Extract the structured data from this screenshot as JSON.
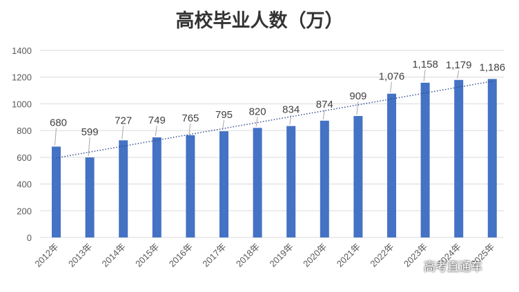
{
  "chart_data": {
    "type": "bar",
    "title": "高校毕业人数（万）",
    "categories": [
      "2012年",
      "2013年",
      "2014年",
      "2015年",
      "2016年",
      "2017年",
      "2018年",
      "2019年",
      "2020年",
      "2021年",
      "2022年",
      "2023年",
      "2024年",
      "2025年"
    ],
    "values": [
      680,
      599,
      727,
      749,
      765,
      795,
      820,
      834,
      874,
      909,
      1076,
      1158,
      1179,
      1186
    ],
    "value_labels": [
      "680",
      "599",
      "727",
      "749",
      "765",
      "795",
      "820",
      "834",
      "874",
      "909",
      "1,076",
      "1,158",
      "1,179",
      "1,186"
    ],
    "ylim": [
      0,
      1400
    ],
    "yticks": [
      "0",
      "200",
      "400",
      "600",
      "800",
      "1000",
      "1200",
      "1400"
    ],
    "grid": true,
    "trendline": "linear, dotted",
    "bar_color": "#4472C4"
  },
  "watermark": "高考直通车"
}
